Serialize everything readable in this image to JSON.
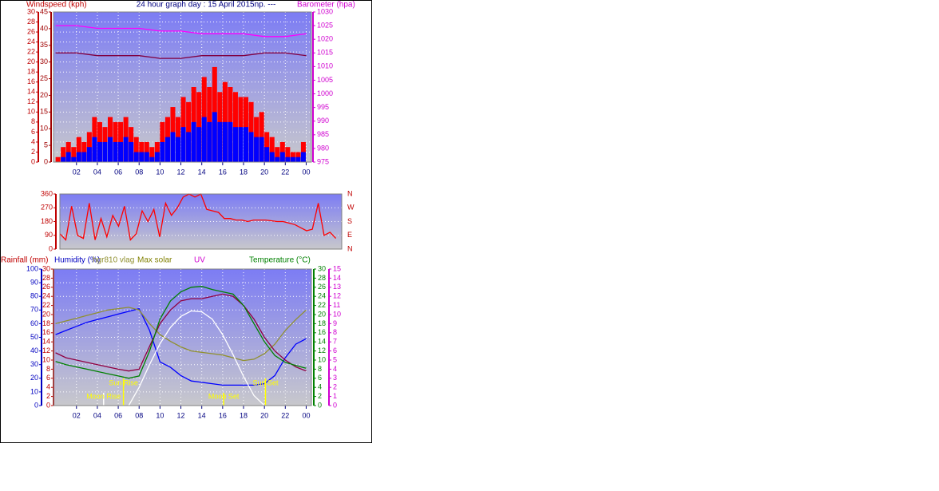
{
  "chart_data": [
    {
      "type": "bar",
      "title": "24 hour graph day : 15 April 2015np. ---",
      "xlim": [
        -0.2,
        24.5
      ],
      "xticks": [
        {
          "value": 2,
          "label": "02"
        },
        {
          "value": 4,
          "label": "04"
        },
        {
          "value": 6,
          "label": "06"
        },
        {
          "value": 8,
          "label": "08"
        },
        10,
        12,
        14,
        16,
        18,
        20,
        22,
        {
          "value": 24,
          "label": "00"
        }
      ],
      "grid": true,
      "axes": [
        {
          "label": "Windspeed (kph)",
          "lim": [
            0,
            30
          ],
          "ticks": [
            0,
            2,
            4,
            6,
            8,
            10,
            12,
            14,
            16,
            18,
            20,
            22,
            24,
            26,
            28,
            30
          ],
          "color": "#c00000"
        },
        {
          "lim": [
            0,
            45
          ],
          "ticks": [
            0,
            5,
            10,
            15,
            20,
            25,
            30,
            35,
            40,
            45
          ],
          "color": "#a00000"
        },
        {
          "label": "Barometer (hpa)",
          "lim": [
            975,
            1030
          ],
          "ticks": [
            975,
            980,
            985,
            990,
            995,
            1000,
            1005,
            1010,
            1015,
            1020,
            1025,
            1030
          ],
          "color": "#d000d0"
        }
      ],
      "series": [
        {
          "type": "bar",
          "color": "#ff0000",
          "axis": 0,
          "x": [
            0,
            0.5,
            1,
            1.5,
            2,
            2.5,
            3,
            3.5,
            4,
            4.5,
            5,
            5.5,
            6,
            6.5,
            7,
            7.5,
            8,
            8.5,
            9,
            9.5,
            10,
            10.5,
            11,
            11.5,
            12,
            12.5,
            13,
            13.5,
            14,
            14.5,
            15,
            15.5,
            16,
            16.5,
            17,
            17.5,
            18,
            18.5,
            19,
            19.5,
            20,
            20.5,
            21,
            21.5,
            22,
            22.5,
            23,
            23.5
          ],
          "values": [
            1,
            3,
            4,
            3,
            5,
            4,
            6,
            9,
            8,
            7,
            9,
            8,
            8,
            9,
            7,
            5,
            4,
            4,
            3,
            4,
            8,
            9,
            11,
            9,
            13,
            12,
            15,
            14,
            17,
            15,
            19,
            14,
            16,
            15,
            14,
            13,
            13,
            12,
            9,
            10,
            6,
            5,
            3,
            4,
            3,
            2,
            2,
            4
          ]
        },
        {
          "type": "bar",
          "color": "#0000ff",
          "axis": 0,
          "x": [
            0,
            0.5,
            1,
            1.5,
            2,
            2.5,
            3,
            3.5,
            4,
            4.5,
            5,
            5.5,
            6,
            6.5,
            7,
            7.5,
            8,
            8.5,
            9,
            9.5,
            10,
            10.5,
            11,
            11.5,
            12,
            12.5,
            13,
            13.5,
            14,
            14.5,
            15,
            15.5,
            16,
            16.5,
            17,
            17.5,
            18,
            18.5,
            19,
            19.5,
            20,
            20.5,
            21,
            21.5,
            22,
            22.5,
            23,
            23.5
          ],
          "values": [
            0,
            1,
            2,
            1,
            2,
            2,
            3,
            5,
            4,
            4,
            5,
            4,
            4,
            5,
            4,
            2,
            2,
            2,
            1,
            2,
            4,
            5,
            6,
            5,
            7,
            6,
            8,
            7,
            9,
            8,
            10,
            8,
            8,
            8,
            7,
            7,
            7,
            6,
            5,
            5,
            3,
            2,
            1,
            2,
            1,
            1,
            1,
            2
          ]
        },
        {
          "type": "line",
          "color": "#ff00ff",
          "axis": 2,
          "x": [
            0,
            2,
            4,
            6,
            8,
            10,
            12,
            14,
            16,
            18,
            20,
            22,
            24
          ],
          "values": [
            1025,
            1025,
            1024,
            1024,
            1024,
            1023,
            1023,
            1022,
            1022,
            1022,
            1021,
            1021,
            1022
          ]
        },
        {
          "type": "line",
          "color": "#800040",
          "axis": 2,
          "x": [
            0,
            2,
            4,
            6,
            8,
            10,
            12,
            14,
            16,
            18,
            20,
            22,
            24
          ],
          "values": [
            1015,
            1015,
            1014,
            1014,
            1014,
            1013,
            1013,
            1014,
            1014,
            1014,
            1015,
            1015,
            1014
          ]
        }
      ]
    },
    {
      "type": "line",
      "xlim": [
        0,
        24
      ],
      "grid": true,
      "axes": [
        {
          "lim": [
            0,
            360
          ],
          "ticks": [
            0,
            90,
            180,
            270,
            360
          ],
          "color": "#c00000"
        },
        {
          "lim": [
            0,
            360
          ],
          "ticks": [
            {
              "value": 0,
              "label": "N"
            },
            {
              "value": 90,
              "label": "E"
            },
            {
              "value": 180,
              "label": "S"
            },
            {
              "value": 270,
              "label": "W"
            },
            {
              "value": 360,
              "label": "N"
            }
          ],
          "color": "#c00000"
        }
      ],
      "series": [
        {
          "type": "line",
          "color": "#ff0000",
          "axis": 0,
          "x": [
            0,
            0.5,
            1,
            1.5,
            2,
            2.5,
            3,
            3.5,
            4,
            4.5,
            5,
            5.5,
            6,
            6.5,
            7,
            7.5,
            8,
            8.5,
            9,
            9.5,
            10,
            10.5,
            11,
            11.5,
            12,
            12.5,
            13,
            13.5,
            14,
            14.5,
            15,
            15.5,
            16,
            16.5,
            17,
            17.5,
            18,
            18.5,
            19,
            19.5,
            20,
            20.5,
            21,
            21.5,
            22,
            22.5,
            23,
            23.5
          ],
          "values": [
            100,
            60,
            280,
            90,
            70,
            300,
            60,
            200,
            80,
            220,
            150,
            280,
            60,
            100,
            250,
            180,
            260,
            80,
            300,
            220,
            270,
            340,
            360,
            340,
            360,
            260,
            250,
            240,
            200,
            200,
            190,
            190,
            180,
            190,
            190,
            190,
            185,
            180,
            180,
            170,
            160,
            140,
            120,
            130,
            300,
            90,
            110,
            70
          ]
        }
      ]
    },
    {
      "type": "line",
      "xlim": [
        -0.2,
        24.5
      ],
      "xticks": [
        {
          "value": 2,
          "label": "02"
        },
        {
          "value": 4,
          "label": "04"
        },
        {
          "value": 6,
          "label": "06"
        },
        {
          "value": 8,
          "label": "08"
        },
        10,
        12,
        14,
        16,
        18,
        20,
        22,
        {
          "value": 24,
          "label": "00"
        }
      ],
      "grid": true,
      "axes": [
        {
          "label": "Humidity (%)",
          "lim": [
            0,
            100
          ],
          "ticks": [
            0,
            10,
            20,
            30,
            40,
            50,
            60,
            70,
            80,
            90,
            100
          ],
          "color": "#0000c0"
        },
        {
          "label": "Rainfall (mm)",
          "lim": [
            0,
            30
          ],
          "ticks": [
            0,
            2,
            4,
            6,
            8,
            10,
            12,
            14,
            16,
            18,
            20,
            22,
            24,
            26,
            28,
            30
          ],
          "color": "#c00000"
        },
        {
          "label": "Temperature (°C)",
          "lim": [
            0,
            30
          ],
          "ticks": [
            0,
            2,
            4,
            6,
            8,
            10,
            12,
            14,
            16,
            18,
            20,
            22,
            24,
            26,
            28,
            30
          ],
          "color": "#008000"
        },
        {
          "label": "UV",
          "lim": [
            0,
            15
          ],
          "ticks": [
            0,
            1,
            2,
            3,
            4,
            5,
            6,
            7,
            8,
            9,
            10,
            11,
            12,
            13,
            14,
            15
          ],
          "color": "#d000d0"
        }
      ],
      "series": [
        {
          "type": "line",
          "color": "#0000ff",
          "axis": 0,
          "x": [
            0,
            1,
            2,
            3,
            4,
            5,
            6,
            7,
            8,
            9,
            10,
            11,
            12,
            13,
            14,
            15,
            16,
            17,
            18,
            19,
            20,
            21,
            22,
            23,
            24
          ],
          "values": [
            52,
            55,
            58,
            61,
            63,
            65,
            67,
            69,
            71,
            55,
            32,
            28,
            22,
            18,
            17,
            16,
            15,
            15,
            15,
            15,
            16,
            22,
            35,
            45,
            49
          ]
        },
        {
          "type": "line",
          "name": "hgr810 vlag",
          "color": "#909030",
          "axis": 0,
          "x": [
            0,
            1,
            2,
            3,
            4,
            5,
            6,
            7,
            8,
            9,
            10,
            11,
            12,
            13,
            14,
            15,
            16,
            17,
            18,
            19,
            20,
            21,
            22,
            23,
            24
          ],
          "values": [
            60,
            62,
            64,
            66,
            68,
            70,
            71,
            72,
            70,
            60,
            52,
            47,
            43,
            40,
            39,
            38,
            37,
            35,
            33,
            34,
            38,
            45,
            55,
            63,
            70
          ]
        },
        {
          "type": "line",
          "color": "#900040",
          "axis": 2,
          "x": [
            0,
            1,
            2,
            3,
            4,
            5,
            6,
            7,
            8,
            9,
            10,
            11,
            12,
            13,
            14,
            15,
            16,
            17,
            18,
            19,
            20,
            21,
            22,
            23,
            24
          ],
          "values": [
            11.6,
            10.5,
            10,
            9.5,
            9,
            8.5,
            8,
            7.6,
            8,
            13,
            18,
            21,
            23,
            23.5,
            23.5,
            24,
            24.5,
            24,
            22,
            19,
            15,
            12,
            10,
            8.5,
            7.6
          ]
        },
        {
          "type": "line",
          "color": "#008000",
          "axis": 2,
          "x": [
            0,
            1,
            2,
            3,
            4,
            5,
            6,
            7,
            8,
            9,
            10,
            11,
            12,
            13,
            14,
            15,
            16,
            17,
            18,
            19,
            20,
            21,
            22,
            23,
            24
          ],
          "values": [
            9.7,
            9,
            8.5,
            8,
            7.5,
            7,
            6.5,
            6,
            6.5,
            12,
            19,
            23,
            25,
            26,
            26.2,
            25.5,
            25,
            24.5,
            22,
            18,
            14,
            11,
            9.5,
            8.8,
            8.2
          ]
        },
        {
          "type": "line",
          "name": "Max solar",
          "color": "#ffffff",
          "axis": 3,
          "x": [
            7,
            8,
            9,
            10,
            11,
            12,
            13,
            14,
            15,
            16,
            17,
            18,
            19,
            20
          ],
          "values": [
            0,
            2,
            4.5,
            6.8,
            8.6,
            9.8,
            10.4,
            10.3,
            9.5,
            7.8,
            5.6,
            3.2,
            1.1,
            0
          ]
        }
      ],
      "events": [
        {
          "label": "Moon Rise",
          "x": 4.6
        },
        {
          "label": "Sun Rise",
          "x": 6.5
        },
        {
          "label": "Moon Set",
          "x": 16.1
        },
        {
          "label": "Sun Set",
          "x": 20.1
        }
      ]
    }
  ]
}
